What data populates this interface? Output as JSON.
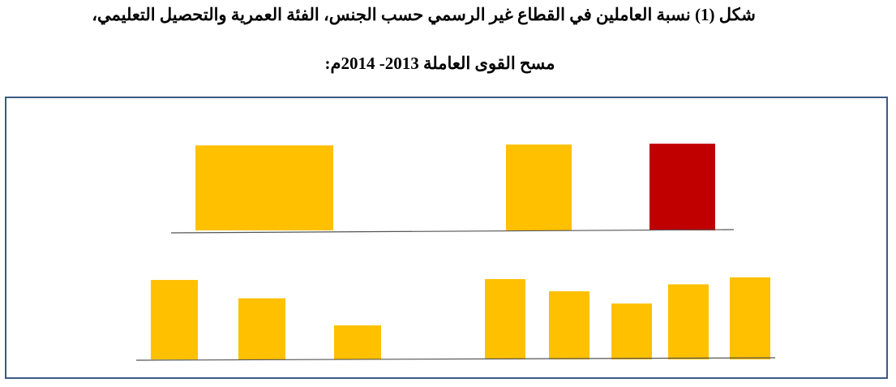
{
  "title": {
    "line1": "شكل (1) نسبة العاملين في القطاع غير الرسمي حسب الجنس، الفئة العمرية والتحصيل التعليمي،",
    "line2": "مسح القوى العاملة 2013- 2014م:"
  },
  "colors": {
    "bar_primary": "#FFC000",
    "bar_accent": "#C00000",
    "frame": "#3B5A86",
    "baseline": "#555555"
  },
  "chart_data": [
    {
      "type": "bar",
      "panel": "top",
      "categories": [
        "",
        "",
        ""
      ],
      "values": [
        100,
        101,
        102
      ],
      "bar_colors": [
        "#FFC000",
        "#FFC000",
        "#C00000"
      ],
      "title": "",
      "xlabel": "",
      "ylabel": "",
      "ylim": [
        0,
        105
      ],
      "grid": false,
      "legend": "none"
    },
    {
      "type": "bar",
      "panel": "bottom",
      "categories": [
        "",
        "",
        "",
        "",
        "",
        "",
        "",
        ""
      ],
      "values": [
        91,
        70,
        39,
        92,
        78,
        64,
        86,
        94
      ],
      "bar_colors": [
        "#FFC000",
        "#FFC000",
        "#FFC000",
        "#FFC000",
        "#FFC000",
        "#FFC000",
        "#FFC000",
        "#FFC000"
      ],
      "title": "",
      "xlabel": "",
      "ylabel": "",
      "ylim": [
        0,
        105
      ],
      "grid": false,
      "legend": "none"
    }
  ]
}
